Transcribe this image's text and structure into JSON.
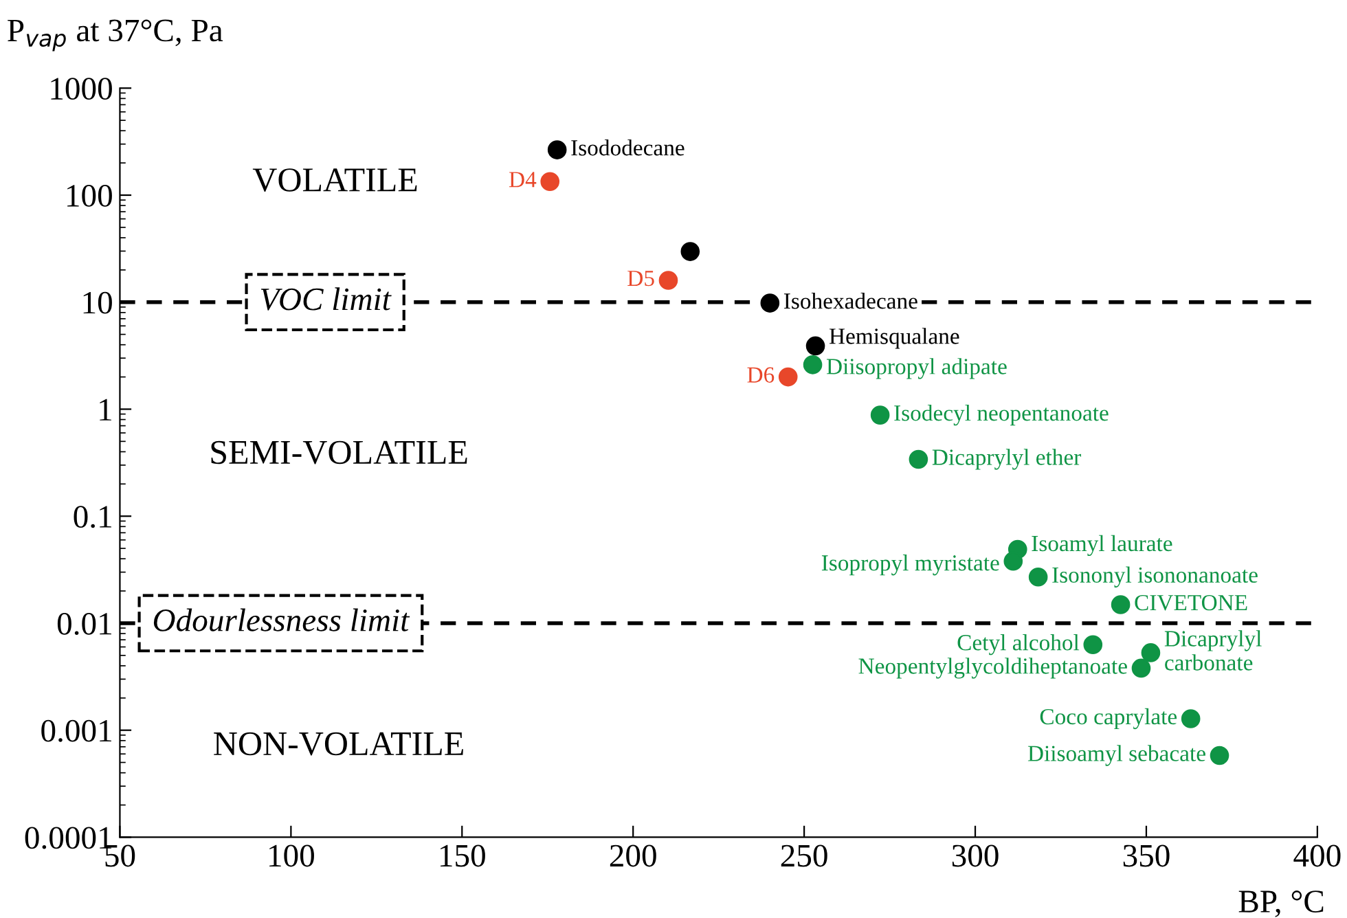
{
  "chart_data": {
    "type": "scatter",
    "log": "y",
    "marker": "circle",
    "grid": false,
    "legend": false,
    "xlabel": "BP, °C",
    "ylabel": "P$_{vap}$ at 37°C, Pa",
    "xlim": [
      50,
      400
    ],
    "xticks": [
      50,
      100,
      150,
      200,
      250,
      300,
      350,
      400
    ],
    "ylim": [
      0.0001,
      1000
    ],
    "yticks": [
      0.0001,
      0.001,
      0.01,
      0.1,
      1,
      10,
      100,
      1000
    ],
    "series": [
      {
        "color": "#000000",
        "x": [
          177.8,
          216.7,
          240,
          253.3
        ],
        "values": [
          265,
          29.7,
          9.8,
          3.9
        ]
      },
      {
        "color": "#e8472a",
        "x": [
          175.7,
          210.3,
          245.3
        ],
        "values": [
          134,
          16,
          2.0
        ]
      },
      {
        "color": "#0f9445",
        "x": [
          252.5,
          272.2,
          283.4,
          312.4,
          311.1,
          318.4,
          334.4,
          351.3,
          348.5,
          363,
          371.4
        ],
        "values": [
          2.6,
          0.88,
          0.34,
          0.049,
          0.038,
          0.027,
          0.0063,
          0.0053,
          0.0038,
          0.00128,
          0.00058
        ]
      },
      {
        "color": "#0f9445",
        "x": [
          342.5
        ],
        "values": [
          0.0149
        ]
      }
    ],
    "ref_lines": [
      {
        "axis": "y",
        "value": 10,
        "label": "VOC limit",
        "line_style": "dashed",
        "color": "#000000"
      },
      {
        "axis": "y",
        "value": 0.01,
        "label": "Odourlessness limit",
        "line_style": "dashed",
        "color": "#000000"
      }
    ],
    "annotations": [
      "VOLATILE",
      "SEMI-VOLATILE",
      "NON-VOLATILE",
      {
        "text": "Isododecane",
        "x": 177.8,
        "y": 265
      },
      {
        "text": "Isohexadecane",
        "x": 240,
        "y": 9.8
      },
      {
        "text": "Hemisqualane",
        "x": 253.3,
        "y": 3.9
      },
      {
        "text": "D4",
        "x": 175.7,
        "y": 134
      },
      {
        "text": "D5",
        "x": 210.3,
        "y": 16
      },
      {
        "text": "D6",
        "x": 245.3,
        "y": 2.0
      },
      {
        "text": "Diisopropyl adipate",
        "x": 252.5,
        "y": 2.6
      },
      {
        "text": "Isodecyl neopentanoate",
        "x": 272.2,
        "y": 0.88
      },
      {
        "text": "Dicaprylyl ether",
        "x": 283.4,
        "y": 0.34
      },
      {
        "text": "Isoamyl laurate",
        "x": 312.4,
        "y": 0.049
      },
      {
        "text": "Isopropyl myristate",
        "x": 311.1,
        "y": 0.038
      },
      {
        "text": "Isononyl isononanoate",
        "x": 318.4,
        "y": 0.027
      },
      {
        "text": "Cetyl alcohol",
        "x": 334.4,
        "y": 0.0063
      },
      {
        "text": "Dicaprylyl\ncarbonate",
        "x": 351.3,
        "y": 0.0053
      },
      {
        "text": "Neopentylglycoldiheptanoate",
        "x": 348.5,
        "y": 0.0038
      },
      {
        "text": "Coco caprylate",
        "x": 363,
        "y": 0.00128
      },
      {
        "text": "Diisoamyl sebacate",
        "x": 371.4,
        "y": 0.00058
      },
      {
        "text": "CIVETONE",
        "x": 342.5,
        "y": 0.0149
      }
    ]
  }
}
